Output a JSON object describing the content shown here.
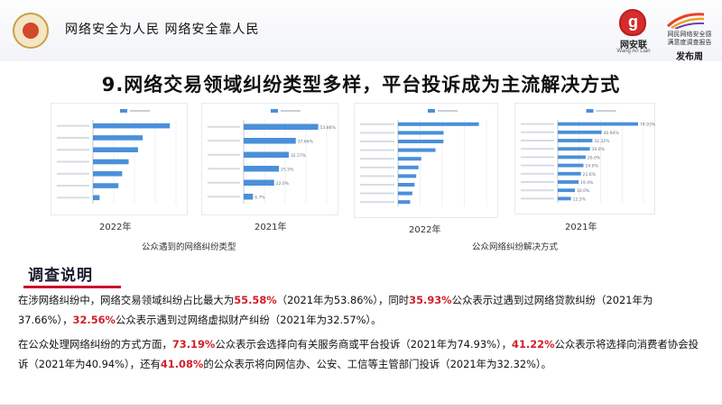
{
  "header": {
    "slogan": "网络安全为人民 网络安全靠人民",
    "logo_wanganlian": {
      "name": "网安联",
      "en": "Wang An Lian"
    },
    "logo_survey": {
      "line1": "网民网络安全感",
      "line2": "满意度调查报告",
      "line3": "发布周"
    }
  },
  "title": "9.网络交易领域纠纷类型多样，平台投诉成为主流解决方式",
  "panels": {
    "chart1_year": "2022年",
    "chart2_year": "2021年",
    "chart3_year": "2022年",
    "chart4_year": "2021年",
    "caption_left": "公众遇到的网络纠纷类型",
    "caption_right": "公众网络纠纷解决方式"
  },
  "chart_data": [
    {
      "type": "bar",
      "orientation": "horizontal",
      "year": "2022年",
      "categories": [
        "",
        "",
        "",
        "",
        "",
        "",
        ""
      ],
      "values": [
        55.58,
        35.93,
        32.56,
        25.8,
        21.1,
        18.4,
        4.8
      ],
      "value_labels": [
        "",
        "",
        "",
        "",
        "",
        "",
        ""
      ],
      "xlim": [
        0,
        60
      ],
      "grid": true
    },
    {
      "type": "bar",
      "orientation": "horizontal",
      "year": "2021年",
      "categories": [
        "",
        "",
        "",
        "",
        "",
        ""
      ],
      "values": [
        53.86,
        37.66,
        32.57,
        25.5,
        22.0,
        6.7
      ],
      "value_labels": [
        "53.86%",
        "37.66%",
        "32.57%",
        "25.5%",
        "22.0%",
        "6.7%"
      ],
      "xlim": [
        0,
        60
      ],
      "grid": true
    },
    {
      "type": "bar",
      "orientation": "horizontal",
      "year": "2022年",
      "categories": [
        "",
        "",
        "",
        "",
        "",
        "",
        "",
        "",
        "",
        ""
      ],
      "values": [
        73.19,
        41.22,
        41.08,
        33.9,
        21.0,
        18.6,
        16.5,
        15.0,
        13.0,
        11.0
      ],
      "value_labels": [
        "",
        "",
        "",
        "",
        "",
        "",
        "",
        "",
        "",
        ""
      ],
      "xlim": [
        0,
        80
      ],
      "grid": true
    },
    {
      "type": "bar",
      "orientation": "horizontal",
      "year": "2021年",
      "categories": [
        "",
        "",
        "",
        "",
        "",
        "",
        "",
        "",
        "",
        ""
      ],
      "values": [
        74.93,
        40.94,
        32.32,
        30.0,
        26.0,
        24.0,
        21.6,
        19.4,
        16.0,
        12.3
      ],
      "value_labels": [
        "74.93%",
        "40.94%",
        "32.32%",
        "30.0%",
        "26.0%",
        "24.0%",
        "21.6%",
        "19.4%",
        "16.0%",
        "12.3%"
      ],
      "xlim": [
        0,
        80
      ],
      "grid": true
    }
  ],
  "survey_notes": {
    "heading": "调查说明",
    "p1": [
      "在涉网络纠纷中，网络交易领域纠纷占比最大为",
      "55.58%",
      "（2021年为53.86%），同时",
      "35.93%",
      "公众表示过遇到过网络贷款纠纷（2021年为37.66%），",
      "32.56%",
      "公众表示遇到过网络虚拟财产纠纷（2021年为32.57%）。"
    ],
    "p2": [
      "在公众处理网络纠纷的方式方面，",
      "73.19%",
      "公众表示会选择向有关服务商或平台投诉（2021年为74.93%），",
      "41.22%",
      "公众表示将选择向消费者协会投诉（2021年为40.94%），还有",
      "41.08%",
      "的公众表示将向网信办、公安、工信等主管部门投诉（2021年为32.32%）。"
    ]
  },
  "colors": {
    "bar": "#4a90d9",
    "grid": "#e4e7ec",
    "accent_red": "#d0202a",
    "underline": "#c8102e"
  }
}
